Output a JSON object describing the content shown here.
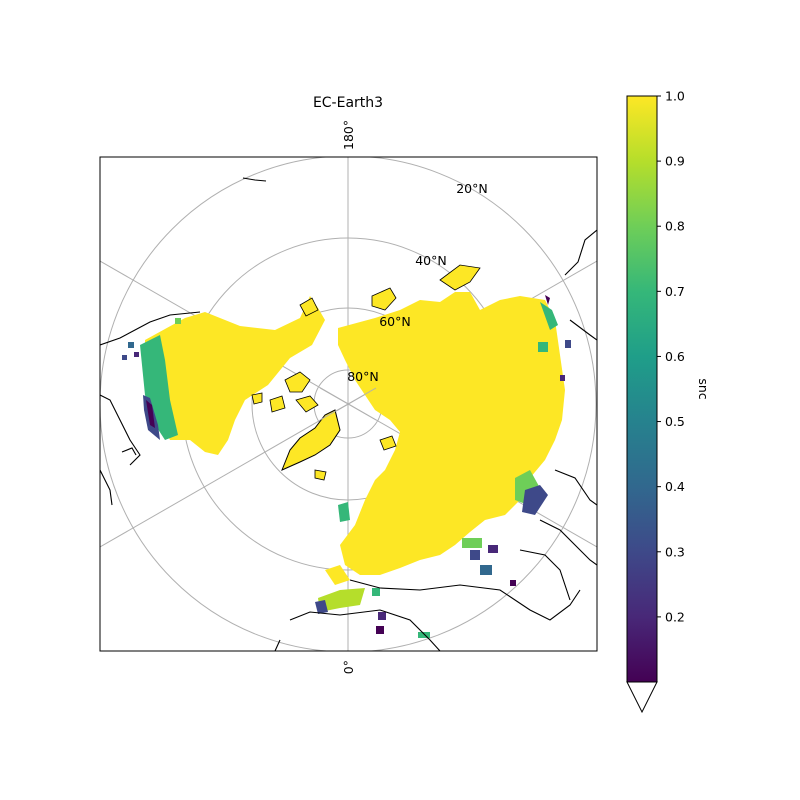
{
  "title": "EC-Earth3",
  "colorbar": {
    "label": "snc",
    "ticks": [
      "0.2",
      "0.3",
      "0.4",
      "0.5",
      "0.6",
      "0.7",
      "0.8",
      "0.9",
      "1.0"
    ],
    "tick_values": [
      0.2,
      0.3,
      0.4,
      0.5,
      0.6,
      0.7,
      0.8,
      0.9,
      1.0
    ],
    "range": [
      0.1,
      1.0
    ],
    "extend": "min",
    "colormap": "viridis"
  },
  "map": {
    "projection": "north-polar-stereographic",
    "longitude_labels": [
      "180°",
      "0°"
    ],
    "latitude_labels": [
      "20°N",
      "40°N",
      "60°N",
      "80°N"
    ],
    "colors": {
      "fill": "#fde725",
      "coast": "#000000",
      "grid": "#b0b0b0",
      "low": "#440154",
      "mid": "#21918c",
      "high": "#5ec962"
    }
  }
}
